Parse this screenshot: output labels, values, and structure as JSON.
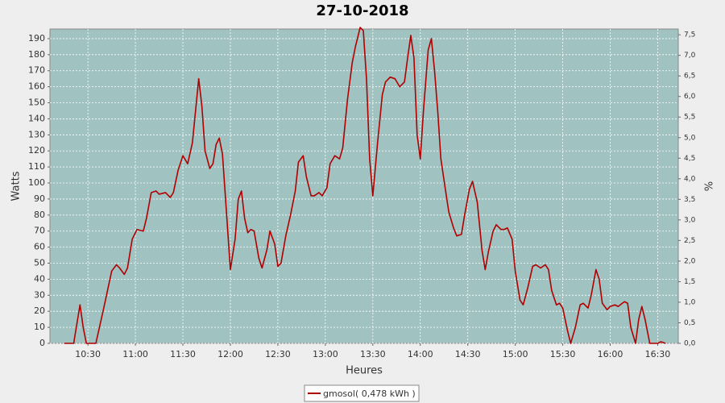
{
  "chart_data": {
    "type": "line",
    "title": "27-10-2018",
    "x_label": "Heures",
    "y_label": "Watts",
    "y2_label": "%",
    "x": [
      "10:15",
      "10:21",
      "10:25",
      "10:27",
      "10:29",
      "10:35",
      "10:40",
      "10:45",
      "10:48",
      "10:50",
      "10:53",
      "10:55",
      "10:58",
      "11:01",
      "11:05",
      "11:07",
      "11:10",
      "11:13",
      "11:15",
      "11:19",
      "11:22",
      "11:24",
      "11:27",
      "11:30",
      "11:33",
      "11:36",
      "11:39",
      "11:40",
      "11:42",
      "11:44",
      "11:47",
      "11:49",
      "11:51",
      "11:53",
      "11:55",
      "11:58",
      "12:00",
      "12:03",
      "12:05",
      "12:07",
      "12:09",
      "12:11",
      "12:13",
      "12:15",
      "12:18",
      "12:20",
      "12:23",
      "12:25",
      "12:28",
      "12:30",
      "12:32",
      "12:35",
      "12:38",
      "12:41",
      "12:43",
      "12:46",
      "12:48",
      "12:51",
      "12:53",
      "12:56",
      "12:58",
      "13:01",
      "13:03",
      "13:06",
      "13:09",
      "13:11",
      "13:14",
      "13:17",
      "13:19",
      "13:22",
      "13:24",
      "13:26",
      "13:28",
      "13:30",
      "13:33",
      "13:36",
      "13:38",
      "13:41",
      "13:44",
      "13:47",
      "13:50",
      "13:52",
      "13:54",
      "13:56",
      "13:58",
      "14:00",
      "14:02",
      "14:05",
      "14:07",
      "14:09",
      "14:11",
      "14:13",
      "14:16",
      "14:18",
      "14:21",
      "14:23",
      "14:26",
      "14:28",
      "14:31",
      "14:33",
      "14:36",
      "14:39",
      "14:41",
      "14:43",
      "14:46",
      "14:48",
      "14:51",
      "14:53",
      "14:55",
      "14:58",
      "15:00",
      "15:03",
      "15:05",
      "15:08",
      "15:11",
      "15:13",
      "15:16",
      "15:19",
      "15:21",
      "15:23",
      "15:26",
      "15:28",
      "15:30",
      "15:33",
      "15:35",
      "15:38",
      "15:41",
      "15:43",
      "15:46",
      "15:48",
      "15:51",
      "15:53",
      "15:55",
      "15:58",
      "16:00",
      "16:03",
      "16:05",
      "16:09",
      "16:11",
      "16:13",
      "16:16",
      "16:18",
      "16:20",
      "16:22",
      "16:25",
      "16:27",
      "16:30",
      "16:32",
      "16:35"
    ],
    "series": [
      {
        "name": "gmosol( 0,478 kWh )",
        "color": "#b00000",
        "values": [
          0,
          0,
          24,
          10,
          0,
          0,
          22,
          45,
          49,
          47,
          43,
          47,
          65,
          71,
          70,
          78,
          94,
          95,
          93,
          94,
          91,
          94,
          108,
          117,
          112,
          125,
          155,
          165,
          148,
          120,
          109,
          112,
          124,
          128,
          118,
          75,
          46,
          65,
          90,
          95,
          78,
          69,
          71,
          70,
          53,
          47,
          58,
          70,
          62,
          48,
          50,
          67,
          80,
          95,
          113,
          117,
          104,
          92,
          92,
          94,
          92,
          97,
          112,
          117,
          115,
          122,
          152,
          175,
          185,
          197,
          195,
          165,
          115,
          92,
          125,
          155,
          163,
          166,
          165,
          160,
          163,
          178,
          192,
          178,
          130,
          115,
          145,
          183,
          190,
          170,
          145,
          115,
          95,
          82,
          72,
          67,
          68,
          80,
          96,
          101,
          88,
          58,
          46,
          57,
          70,
          74,
          71,
          71,
          72,
          65,
          45,
          27,
          24,
          35,
          48,
          49,
          47,
          49,
          46,
          33,
          24,
          25,
          22,
          8,
          0,
          10,
          24,
          25,
          22,
          30,
          46,
          40,
          25,
          21,
          23,
          24,
          23,
          26,
          25,
          10,
          0,
          15,
          23,
          15,
          0,
          0,
          0,
          1,
          0
        ]
      }
    ],
    "xlim": [
      "10:06",
      "16:43"
    ],
    "xticks": [
      "10:30",
      "11:00",
      "11:30",
      "12:00",
      "12:30",
      "13:00",
      "13:30",
      "14:00",
      "14:30",
      "15:00",
      "15:30",
      "16:00",
      "16:30"
    ],
    "ylim": [
      0,
      196
    ],
    "yticks": [
      0,
      10,
      20,
      30,
      40,
      50,
      60,
      70,
      80,
      90,
      100,
      110,
      120,
      130,
      140,
      150,
      160,
      170,
      180,
      190
    ],
    "y2lim": [
      0,
      7.64
    ],
    "y2ticks": [
      {
        "value": 0,
        "label": "0,0"
      },
      {
        "value": 0.5,
        "label": "0,5"
      },
      {
        "value": 1,
        "label": "1,0"
      },
      {
        "value": 1.5,
        "label": "1,5"
      },
      {
        "value": 2,
        "label": "2,0"
      },
      {
        "value": 2.5,
        "label": "2,5"
      },
      {
        "value": 3,
        "label": "3,0"
      },
      {
        "value": 3.5,
        "label": "3,5"
      },
      {
        "value": 4,
        "label": "4,0"
      },
      {
        "value": 4.5,
        "label": "4,5"
      },
      {
        "value": 5,
        "label": "5,0"
      },
      {
        "value": 5.5,
        "label": "5,5"
      },
      {
        "value": 6,
        "label": "6,0"
      },
      {
        "value": 6.5,
        "label": "6,5"
      },
      {
        "value": 7,
        "label": "7,0"
      },
      {
        "value": 7.5,
        "label": "7,5"
      }
    ],
    "grid": true,
    "background": "#a0c2c1"
  }
}
